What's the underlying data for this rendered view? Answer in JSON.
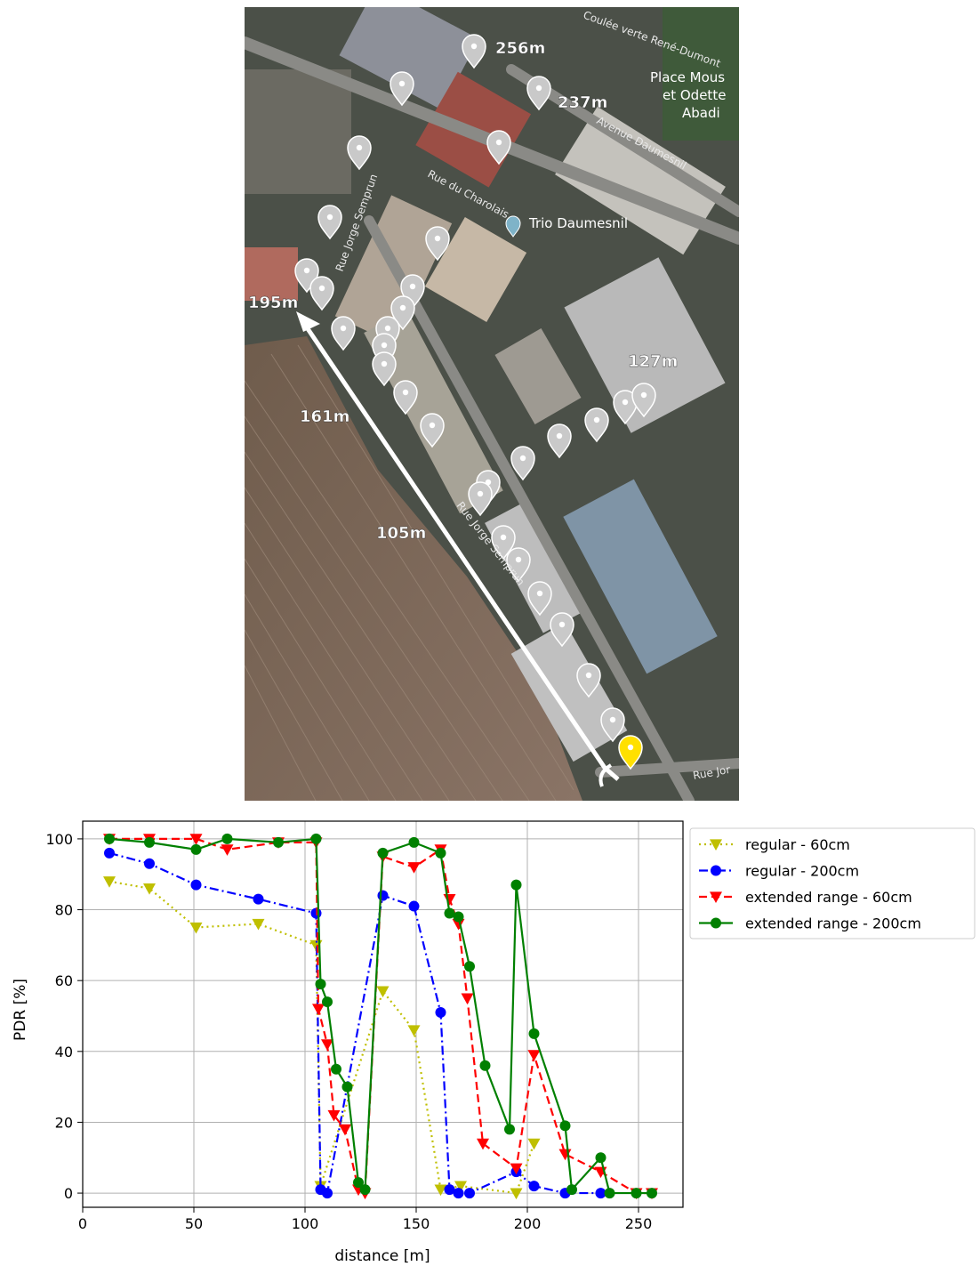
{
  "map": {
    "distance_labels": [
      "256m",
      "237m",
      "195m",
      "161m",
      "127m",
      "105m"
    ],
    "place_labels": [
      "Trio Daumesnil",
      "Place Mous",
      "et Odette",
      "Abadi"
    ],
    "street_labels": [
      "Rue du Charolais",
      "Avenue Daumesnil",
      "Rue Jorge Semprun",
      "Rue Jorge Semprun",
      "Coulée verte René-Dumont",
      "Rue Jor"
    ],
    "icons": [
      "map-pin-icon",
      "start-pin-icon",
      "direction-arrow-icon"
    ],
    "colors": {
      "pin": "#c9c9c9",
      "start_pin": "#ffe000",
      "path": "#ffffff"
    }
  },
  "chart_data": {
    "type": "line",
    "xlabel": "distance [m]",
    "ylabel": "PDR [%]",
    "xlim": [
      0,
      270
    ],
    "ylim": [
      -4,
      105
    ],
    "xticks": [
      0,
      50,
      100,
      150,
      200,
      250
    ],
    "yticks": [
      0,
      20,
      40,
      60,
      80,
      100
    ],
    "grid": true,
    "legend_position": "outside-right",
    "series": [
      {
        "name": "regular - 60cm",
        "color": "#bfbf00",
        "dash": "dotted",
        "marker": "triangle_down",
        "x": [
          12,
          30,
          51,
          79,
          105,
          107,
          135,
          149,
          161,
          170,
          195,
          203
        ],
        "y": [
          88,
          86,
          75,
          76,
          70,
          2,
          57,
          46,
          1,
          2,
          0,
          14
        ]
      },
      {
        "name": "regular - 200cm",
        "color": "#0000ff",
        "dash": "dashdot",
        "marker": "circle",
        "x": [
          12,
          30,
          51,
          79,
          105,
          107,
          110,
          135,
          149,
          161,
          165,
          169,
          174,
          195,
          203,
          217,
          233
        ],
        "y": [
          96,
          93,
          87,
          83,
          79,
          1,
          0,
          84,
          81,
          51,
          1,
          0,
          0,
          6,
          2,
          0,
          0
        ]
      },
      {
        "name": "extended range - 60cm",
        "color": "#ff0000",
        "dash": "dashed",
        "marker": "triangle_down",
        "x": [
          12,
          30,
          51,
          65,
          88,
          105,
          106,
          110,
          113,
          118,
          124,
          127,
          135,
          149,
          161,
          165,
          169,
          173,
          180,
          195,
          203,
          217,
          233,
          249,
          256
        ],
        "y": [
          100,
          100,
          100,
          97,
          99,
          99,
          52,
          42,
          22,
          18,
          1,
          0,
          95,
          92,
          97,
          83,
          76,
          55,
          14,
          7,
          39,
          11,
          6,
          0,
          0
        ]
      },
      {
        "name": "extended range - 200cm",
        "color": "#008000",
        "dash": "solid",
        "marker": "circle",
        "x": [
          12,
          30,
          51,
          65,
          88,
          105,
          107,
          110,
          114,
          119,
          124,
          127,
          135,
          149,
          161,
          165,
          169,
          174,
          181,
          192,
          195,
          203,
          217,
          220,
          233,
          237,
          249,
          256
        ],
        "y": [
          100,
          99,
          97,
          100,
          99,
          100,
          59,
          54,
          35,
          30,
          3,
          1,
          96,
          99,
          96,
          79,
          78,
          64,
          36,
          18,
          87,
          45,
          19,
          1,
          10,
          0,
          0,
          0
        ]
      }
    ]
  }
}
